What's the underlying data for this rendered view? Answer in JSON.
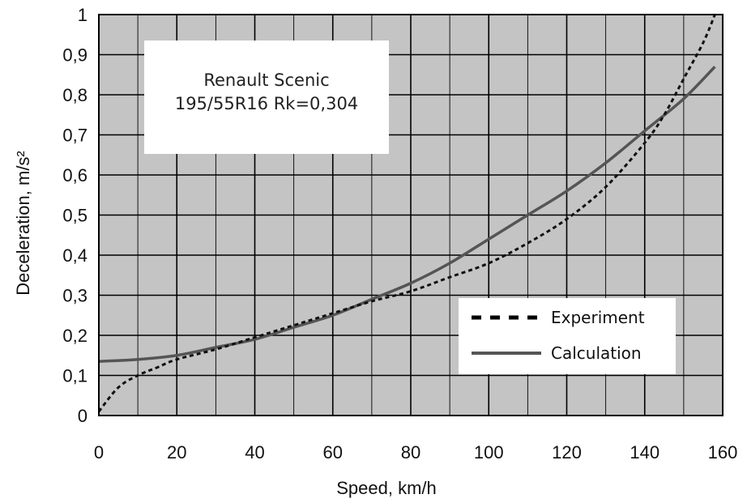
{
  "chart_data": {
    "type": "line",
    "xlabel": "Speed, km/h",
    "ylabel": "Deceleration, m/s²",
    "xlim": [
      0,
      160
    ],
    "ylim": [
      0,
      1
    ],
    "x_ticks": [
      0,
      20,
      40,
      60,
      80,
      100,
      120,
      140,
      160
    ],
    "y_ticks": [
      0,
      0.1,
      0.2,
      0.3,
      0.4,
      0.5,
      0.6,
      0.7,
      0.8,
      0.9,
      1
    ],
    "x_tick_labels": [
      "0",
      "20",
      "40",
      "60",
      "80",
      "100",
      "120",
      "140",
      "160"
    ],
    "y_tick_labels": [
      "0",
      "0,1",
      "0,2",
      "0,3",
      "0,4",
      "0,5",
      "0,6",
      "0,7",
      "0,8",
      "0,9",
      "1"
    ],
    "grid": true,
    "x_minor_step": 10,
    "plot_background": "#c4c4c4",
    "annotation": [
      "Renault Scenic",
      "195/55R16 Rk=0,304"
    ],
    "legend_position": "bottom-right",
    "series": [
      {
        "name": "Experiment",
        "style": "dashed",
        "color": "#111111",
        "x": [
          0,
          5,
          10,
          15,
          20,
          30,
          40,
          50,
          60,
          70,
          80,
          90,
          100,
          110,
          120,
          130,
          140,
          145,
          150,
          155,
          158
        ],
        "y": [
          0.01,
          0.07,
          0.1,
          0.12,
          0.14,
          0.165,
          0.195,
          0.225,
          0.255,
          0.285,
          0.31,
          0.345,
          0.38,
          0.43,
          0.49,
          0.57,
          0.68,
          0.75,
          0.84,
          0.93,
          1.0
        ]
      },
      {
        "name": "Calculation",
        "style": "solid",
        "color": "#555555",
        "x": [
          0,
          10,
          20,
          30,
          40,
          50,
          60,
          70,
          80,
          90,
          100,
          110,
          120,
          130,
          140,
          150,
          158
        ],
        "y": [
          0.135,
          0.14,
          0.15,
          0.17,
          0.19,
          0.22,
          0.25,
          0.29,
          0.33,
          0.38,
          0.44,
          0.5,
          0.56,
          0.63,
          0.71,
          0.79,
          0.87
        ]
      }
    ]
  }
}
